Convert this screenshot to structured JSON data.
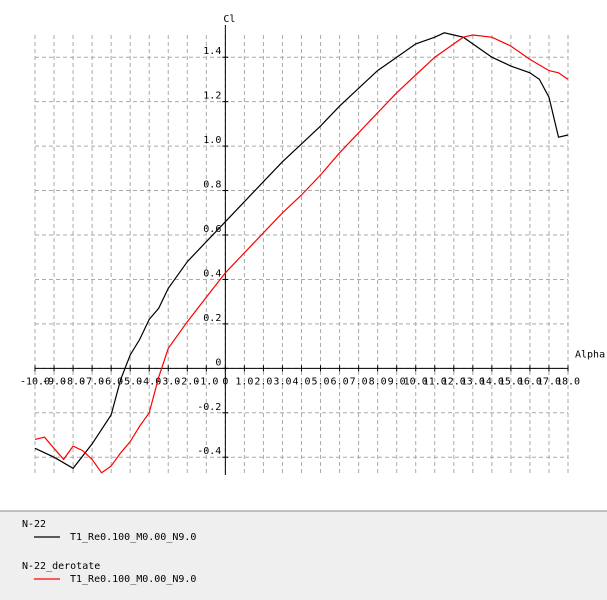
{
  "chart_data": {
    "type": "line",
    "x_label": "Alpha",
    "y_label": "Cl",
    "xlim": [
      -10,
      18
    ],
    "ylim": [
      -0.48,
      1.5
    ],
    "xticks": [
      {
        "value": -10,
        "label": "-10.0"
      },
      {
        "value": -9,
        "label": "-9.0"
      },
      {
        "value": -8,
        "label": "-8.0"
      },
      {
        "value": -7,
        "label": "-7.0"
      },
      {
        "value": -6,
        "label": "-6.0"
      },
      {
        "value": -5,
        "label": "-5.0"
      },
      {
        "value": -4,
        "label": "-4.0"
      },
      {
        "value": -3,
        "label": "-3.0"
      },
      {
        "value": -2,
        "label": "-2.0"
      },
      {
        "value": -1,
        "label": "-1.0"
      },
      0,
      {
        "value": 1,
        "label": "1.0"
      },
      {
        "value": 2,
        "label": "2.0"
      },
      {
        "value": 3,
        "label": "3.0"
      },
      {
        "value": 4,
        "label": "4.0"
      },
      {
        "value": 5,
        "label": "5.0"
      },
      {
        "value": 6,
        "label": "6.0"
      },
      {
        "value": 7,
        "label": "7.0"
      },
      {
        "value": 8,
        "label": "8.0"
      },
      {
        "value": 9,
        "label": "9.0"
      },
      {
        "value": 10,
        "label": "10.0"
      },
      {
        "value": 11,
        "label": "11.0"
      },
      {
        "value": 12,
        "label": "12.0"
      },
      {
        "value": 13,
        "label": "13.0"
      },
      {
        "value": 14,
        "label": "14.0"
      },
      {
        "value": 15,
        "label": "15.0"
      },
      {
        "value": 16,
        "label": "16.0"
      },
      {
        "value": 17,
        "label": "17.0"
      },
      {
        "value": 18,
        "label": "18.0"
      }
    ],
    "yticks": [
      -0.4,
      -0.2,
      0,
      0.2,
      0.4,
      0.6,
      0.8,
      {
        "value": 1,
        "label": "1.0"
      },
      1.2,
      1.4
    ],
    "grid": true,
    "series": [
      {
        "group": "N-22",
        "name": "T1_Re0.100_M0.00_N9.0",
        "color": "#000000",
        "x": [
          -10,
          -9,
          -8,
          -7,
          -6,
          -5.5,
          -5,
          -4.5,
          -4,
          -3.5,
          -3,
          -2,
          -1,
          0,
          1,
          2,
          3,
          4,
          5,
          6,
          7,
          8,
          9,
          10,
          11,
          11.5,
          12,
          12.5,
          13,
          14,
          15,
          16,
          16.5,
          17,
          17.5,
          18
        ],
        "values": [
          -0.36,
          -0.4,
          -0.45,
          -0.34,
          -0.21,
          -0.05,
          0.06,
          0.13,
          0.22,
          0.27,
          0.36,
          0.48,
          0.57,
          0.66,
          0.75,
          0.84,
          0.93,
          1.01,
          1.09,
          1.18,
          1.26,
          1.34,
          1.4,
          1.46,
          1.49,
          1.51,
          1.5,
          1.49,
          1.46,
          1.4,
          1.36,
          1.33,
          1.3,
          1.22,
          1.04,
          1.05
        ]
      },
      {
        "group": "N-22_derotate",
        "name": "T1_Re0.100_M0.00_N9.0",
        "color": "#ff0000",
        "x": [
          -10,
          -9.5,
          -9,
          -8.5,
          -8,
          -7.5,
          -7,
          -6.5,
          -6,
          -5.5,
          -5,
          -4.5,
          -4,
          -3.5,
          -3,
          -2,
          -1,
          0,
          1,
          2,
          3,
          4,
          5,
          6,
          7,
          8,
          9,
          10,
          11,
          12,
          12.5,
          13,
          14,
          15,
          16,
          17,
          17.5,
          18
        ],
        "values": [
          -0.32,
          -0.31,
          -0.36,
          -0.41,
          -0.35,
          -0.37,
          -0.41,
          -0.47,
          -0.44,
          -0.38,
          -0.33,
          -0.26,
          -0.2,
          -0.04,
          0.09,
          0.21,
          0.32,
          0.43,
          0.52,
          0.61,
          0.7,
          0.78,
          0.87,
          0.97,
          1.06,
          1.15,
          1.24,
          1.32,
          1.4,
          1.46,
          1.49,
          1.5,
          1.49,
          1.45,
          1.39,
          1.34,
          1.33,
          1.3
        ]
      }
    ]
  }
}
